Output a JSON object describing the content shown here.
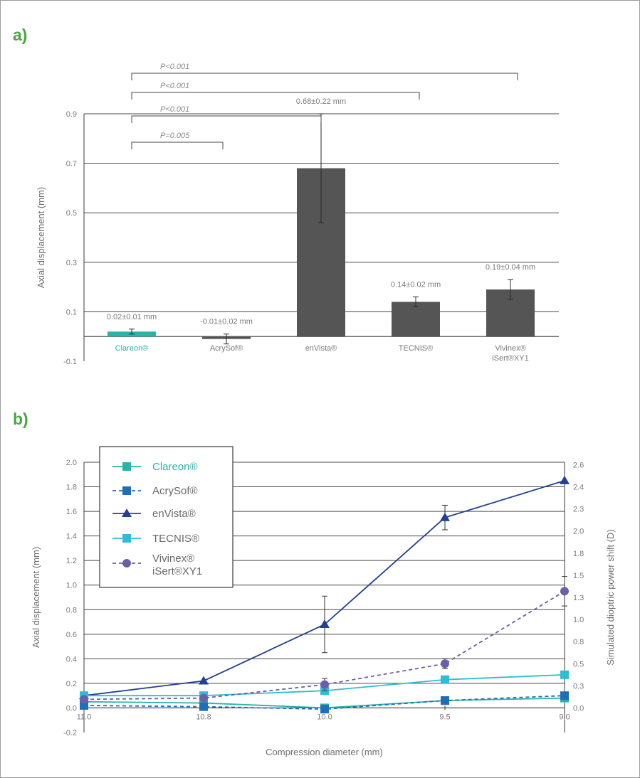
{
  "chart_data": [
    {
      "panel": "a)",
      "type": "bar",
      "ylabel": "Axial displacement (mm)",
      "ylim": [
        -0.1,
        0.9
      ],
      "yticks": [
        "0.9",
        "0.7",
        "0.5",
        "0.3",
        "0.1",
        "-0.1"
      ],
      "grid": true,
      "categories": [
        "Clareon®",
        "AcrySof®",
        "enVista®",
        "TECNIS®",
        "Vivinex® iSert®XY1"
      ],
      "values": [
        0.02,
        -0.01,
        0.68,
        0.14,
        0.19
      ],
      "errors": [
        0.01,
        0.02,
        0.22,
        0.02,
        0.04
      ],
      "value_labels": [
        "0.02±0.01 mm",
        "-0.01±0.02 mm",
        "0.68±0.22 mm",
        "0.14±0.02 mm",
        "0.19±0.04 mm"
      ],
      "highlight_color": "#2ab3a6",
      "bar_color": "#555555",
      "comparisons": [
        {
          "label": "P=0.005",
          "from": 0,
          "to": 1
        },
        {
          "label": "P<0.001",
          "from": 0,
          "to": 2
        },
        {
          "label": "P<0.001",
          "from": 0,
          "to": 3
        },
        {
          "label": "P<0.001",
          "from": 0,
          "to": 4
        }
      ]
    },
    {
      "panel": "b)",
      "type": "line",
      "xlabel": "Compression diameter (mm)",
      "ylabel": "Axial displacement (mm)",
      "ylabel_right": "Simulated dioptric power shift (D)",
      "x_ticks": [
        "11.0",
        "10.8",
        "10.0",
        "9.5",
        "9.0"
      ],
      "ylim": [
        -0.2,
        2.0
      ],
      "yticks": [
        "2.0",
        "1.8",
        "1.6",
        "1.4",
        "1.2",
        "1.0",
        "0.8",
        "0.6",
        "0.4",
        "0.2",
        "0.0",
        "-0.2"
      ],
      "yticks_right": [
        "2.6",
        "2.4",
        "2.3",
        "2.0",
        "1.8",
        "1.5",
        "1.3",
        "1.0",
        "0.8",
        "0.5",
        "0.3",
        "0.0"
      ],
      "legend_position": "top-left",
      "grid": true,
      "series": [
        {
          "name": "Clareon®",
          "color": "#2ab3a6",
          "marker": "square",
          "dash": false,
          "values": [
            0.05,
            0.04,
            0.0,
            0.06,
            0.08
          ],
          "errors": [
            0.02,
            0.02,
            0.02,
            0.02,
            0.02
          ]
        },
        {
          "name": "AcrySof®",
          "color": "#1f6fb8",
          "marker": "square",
          "dash": true,
          "values": [
            0.02,
            0.01,
            -0.01,
            0.06,
            0.1
          ],
          "errors": [
            0.02,
            0.02,
            0.02,
            0.02,
            0.02
          ]
        },
        {
          "name": "enVista®",
          "color": "#24418f",
          "marker": "triangle",
          "dash": false,
          "values": [
            0.1,
            0.22,
            0.68,
            1.55,
            1.85
          ],
          "errors": [
            0.0,
            0.0,
            0.23,
            0.1,
            0.0
          ]
        },
        {
          "name": "TECNIS®",
          "color": "#31bcd6",
          "marker": "square",
          "dash": false,
          "values": [
            0.1,
            0.1,
            0.14,
            0.23,
            0.27
          ],
          "errors": [
            0.0,
            0.0,
            0.03,
            0.02,
            0.03
          ]
        },
        {
          "name": "Vivinex® iSert®XY1",
          "color": "#6a5fa8",
          "marker": "circle",
          "dash": true,
          "values": [
            0.07,
            0.08,
            0.19,
            0.36,
            0.95
          ],
          "errors": [
            0.0,
            0.0,
            0.05,
            0.04,
            0.12
          ]
        }
      ]
    }
  ]
}
